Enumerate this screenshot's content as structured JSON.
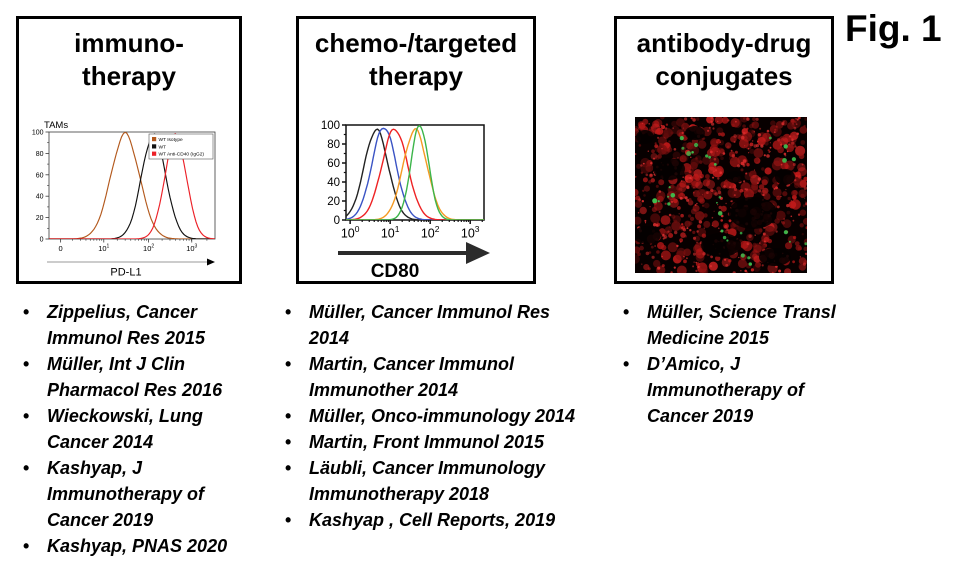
{
  "figure": {
    "label": "Fig. 1"
  },
  "panels": [
    {
      "title_line1": "immuno-",
      "title_line2": "therapy",
      "citations": [
        "Zippelius, Cancer Immunol Res 2015",
        "Müller, Int J Clin Pharmacol Res 2016",
        "Wieckowski, Lung Cancer 2014",
        "Kashyap, J Immunotherapy of Cancer 2019",
        "Kashyap, PNAS 2020"
      ]
    },
    {
      "title_line1": "chemo-/targeted",
      "title_line2": "therapy",
      "citations": [
        "Müller, Cancer Immunol Res 2014",
        "Martin, Cancer Immunol Immunother 2014",
        "Müller, Onco-immunology 2014",
        "Martin, Front Immunol 2015",
        "Läubli, Cancer Immunology Immunotherapy 2018",
        "Kashyap , Cell Reports, 2019"
      ]
    },
    {
      "title_line1": "antibody-drug",
      "title_line2": "conjugates",
      "citations": [
        "Müller, Science Transl Medicine 2015",
        "D’Amico, J Immunotherapy of Cancer 2019"
      ]
    }
  ],
  "chart_data": [
    {
      "type": "line",
      "panel": "immuno-therapy",
      "title": "TAMs",
      "xlabel": "PD-L1",
      "ylabel": "",
      "xscale": "log",
      "ylim": [
        0,
        100
      ],
      "yticks": [
        0,
        20,
        40,
        60,
        80,
        100
      ],
      "xtick_labels": [
        "0",
        "10^1",
        "10^2",
        "10^3"
      ],
      "grid": false,
      "legend_position": "top-right",
      "series": [
        {
          "name": "WT Isotype",
          "color": "#b3591d",
          "peak_x": 30,
          "peak_y": 98,
          "sigma_decades": 0.32
        },
        {
          "name": "WT",
          "color": "#111111",
          "peak_x": 130,
          "peak_y": 98,
          "sigma_decades": 0.27
        },
        {
          "name": "WT Anti-CD40 (IgG2)",
          "color": "#ec2027",
          "peak_x": 400,
          "peak_y": 97,
          "sigma_decades": 0.24
        }
      ]
    },
    {
      "type": "line",
      "panel": "chemo-/targeted therapy",
      "title": "",
      "xlabel": "CD80",
      "ylabel": "",
      "xscale": "log",
      "ylim": [
        0,
        100
      ],
      "yticks": [
        0,
        20,
        40,
        60,
        80,
        100
      ],
      "xtick_labels": [
        "10^0",
        "10^1",
        "10^2",
        "10^3"
      ],
      "grid": false,
      "legend_position": "none",
      "series": [
        {
          "name": "black curve",
          "color": "#222222",
          "peak_x": 4.5,
          "peak_y": 95,
          "sigma_decades": 0.3
        },
        {
          "name": "blue curve",
          "color": "#3a53c4",
          "peak_x": 7,
          "peak_y": 98,
          "sigma_decades": 0.3
        },
        {
          "name": "red curve",
          "color": "#ee2224",
          "peak_x": 13,
          "peak_y": 96,
          "sigma_decades": 0.32
        },
        {
          "name": "orange curve",
          "color": "#f59a23",
          "peak_x": 42,
          "peak_y": 95,
          "sigma_decades": 0.3
        },
        {
          "name": "green curve",
          "color": "#3cb54a",
          "peak_x": 55,
          "peak_y": 100,
          "sigma_decades": 0.22
        }
      ]
    }
  ],
  "micrograph": {
    "description": "fluorescence micrograph: dense red tissue staining with scattered green puncta on black background",
    "background_color": "#070000",
    "red_color": "#a81414",
    "green_color": "#3fbf4f"
  }
}
